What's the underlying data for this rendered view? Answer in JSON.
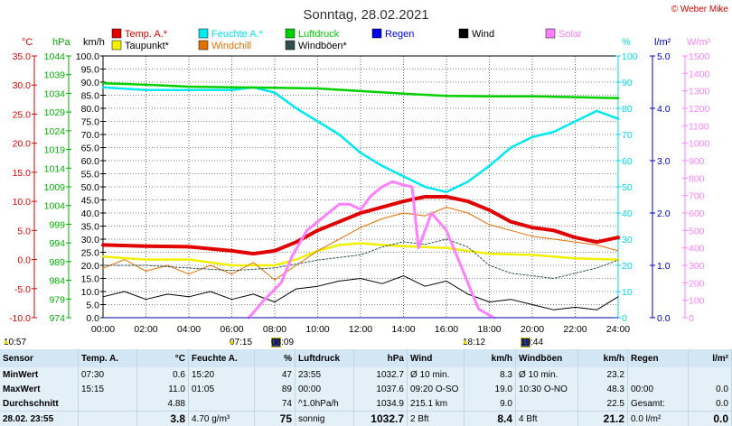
{
  "chart_data": {
    "type": "line",
    "title": "Sonntag, 28.02.2021",
    "credit": "© Weber Mike",
    "x_ticks": [
      "00:00",
      "02:00",
      "04:00",
      "06:00",
      "08:00",
      "10:00",
      "12:00",
      "14:00",
      "16:00",
      "18:00",
      "20:00",
      "22:00",
      "24:00"
    ],
    "axes": [
      {
        "unit": "°C",
        "range": [
          -10,
          35
        ],
        "ticks": [
          "35.0",
          "30.0",
          "25.0",
          "20.0",
          "15.0",
          "10.0",
          "5.0",
          "0.0",
          "-5.0",
          "-10.0"
        ],
        "color": "#e00000"
      },
      {
        "unit": "hPa",
        "range": [
          974,
          1044
        ],
        "ticks": [
          "1044",
          "1039",
          "1034",
          "1029",
          "1024",
          "1019",
          "1014",
          "1009",
          "1004",
          "999",
          "994",
          "989",
          "984",
          "979",
          "974"
        ],
        "color": "#00b000"
      },
      {
        "unit": "km/h",
        "range": [
          0,
          100
        ],
        "ticks": [
          "100.0",
          "95.0",
          "90.0",
          "85.0",
          "80.0",
          "75.0",
          "70.0",
          "65.0",
          "60.0",
          "55.0",
          "50.0",
          "45.0",
          "40.0",
          "35.0",
          "30.0",
          "25.0",
          "20.0",
          "15.0",
          "10.0",
          "5.0",
          "0.0"
        ],
        "color": "#000000"
      },
      {
        "unit": "%",
        "range": [
          0,
          100
        ],
        "ticks": [
          "100",
          "90",
          "80",
          "70",
          "60",
          "50",
          "40",
          "30",
          "20",
          "10",
          "0"
        ],
        "color": "#00d8e8"
      },
      {
        "unit": "l/m²",
        "range": [
          0,
          5
        ],
        "ticks": [
          "5.0",
          "4.0",
          "3.0",
          "2.0",
          "1.0",
          "0.0"
        ],
        "color": "#0000c0"
      },
      {
        "unit": "W/m²",
        "range": [
          0,
          1500
        ],
        "ticks": [
          "1500",
          "1400",
          "1300",
          "1200",
          "1100",
          "1000",
          "900",
          "800",
          "700",
          "600",
          "500",
          "400",
          "300",
          "200",
          "100",
          "0"
        ],
        "color": "#ff80ff"
      }
    ],
    "legend": [
      {
        "label": "Temp. A.*",
        "color": "#e00000"
      },
      {
        "label": "Feuchte A.*",
        "color": "#00e8f0"
      },
      {
        "label": "Luftdruck",
        "color": "#00d000"
      },
      {
        "label": "Regen",
        "color": "#0000e0"
      },
      {
        "label": "Wind",
        "color": "#000000"
      },
      {
        "label": "Solar",
        "color": "#ff80ff"
      },
      {
        "label": "Taupunkt*",
        "color": "#f0f000"
      },
      {
        "label": "Windchill",
        "color": "#e07000"
      },
      {
        "label": "Windböen*",
        "color": "#305050"
      }
    ],
    "series": [
      {
        "name": "Temp. A.*",
        "axis": "°C",
        "color": "#e00000",
        "x": [
          0,
          2,
          4,
          6,
          7,
          8,
          9,
          10,
          11,
          12,
          13,
          14,
          15,
          16,
          17,
          18,
          19,
          20,
          21,
          22,
          23,
          24
        ],
        "y": [
          2.5,
          2.3,
          2.2,
          1.5,
          1.0,
          1.5,
          3.0,
          5.0,
          6.5,
          8.0,
          9.0,
          10.0,
          10.8,
          10.8,
          10.0,
          8.5,
          6.5,
          5.5,
          5.0,
          3.8,
          3.0,
          3.8
        ]
      },
      {
        "name": "Feuchte A.*",
        "axis": "%",
        "color": "#00e8f0",
        "x": [
          0,
          2,
          4,
          6,
          7,
          8,
          9,
          10,
          11,
          12,
          13,
          14,
          15,
          16,
          17,
          18,
          19,
          20,
          21,
          22,
          23,
          24
        ],
        "y": [
          88,
          87,
          87,
          87,
          88,
          86,
          80,
          75,
          70,
          63,
          58,
          54,
          50,
          48,
          52,
          58,
          65,
          69,
          71,
          75,
          79,
          76
        ]
      },
      {
        "name": "Luftdruck",
        "axis": "hPa",
        "color": "#00d000",
        "x": [
          0,
          2,
          4,
          6,
          8,
          10,
          12,
          14,
          16,
          18,
          20,
          22,
          24
        ],
        "y": [
          1036.7,
          1036.3,
          1035.8,
          1035.6,
          1035.5,
          1035.3,
          1034.6,
          1033.9,
          1033.3,
          1033.2,
          1033.2,
          1033.0,
          1032.7
        ]
      },
      {
        "name": "Taupunkt*",
        "axis": "°C",
        "color": "#f0f000",
        "x": [
          0,
          2,
          4,
          6,
          8,
          9,
          10,
          11,
          12,
          13,
          14,
          16,
          18,
          20,
          22,
          24
        ],
        "y": [
          0.5,
          0.0,
          0.0,
          -1.0,
          -1.0,
          0.0,
          1.5,
          2.5,
          2.8,
          2.5,
          2.3,
          2.0,
          1.0,
          0.8,
          0.2,
          0.0
        ]
      },
      {
        "name": "Windchill",
        "axis": "°C",
        "color": "#e07000",
        "x": [
          0,
          1,
          2,
          3,
          4,
          5,
          6,
          7,
          8,
          9,
          10,
          11,
          12,
          13,
          14,
          15,
          16,
          17,
          18,
          19,
          20,
          21,
          22,
          23,
          24
        ],
        "y": [
          -1.5,
          0.0,
          -2.0,
          -1.0,
          -2.5,
          -1.0,
          -2.5,
          -0.5,
          -3.5,
          -1.0,
          1.5,
          3.5,
          5.5,
          7.0,
          8.0,
          7.5,
          9.0,
          8.0,
          6.0,
          5.0,
          4.0,
          3.5,
          3.0,
          2.5,
          1.5
        ]
      },
      {
        "name": "Windböen*",
        "axis": "km/h",
        "color": "#305050",
        "x": [
          0,
          2,
          4,
          6,
          8,
          10,
          12,
          13,
          14,
          15,
          16,
          17,
          18,
          19,
          20,
          21,
          22,
          23,
          24
        ],
        "y": [
          20,
          20,
          19,
          18,
          19,
          22,
          24,
          27,
          29,
          28,
          30,
          27,
          20,
          17,
          16,
          15,
          17,
          19,
          22
        ]
      },
      {
        "name": "Wind",
        "axis": "km/h",
        "color": "#000000",
        "x": [
          0,
          1,
          2,
          3,
          4,
          5,
          6,
          7,
          8,
          9,
          10,
          11,
          12,
          13,
          14,
          15,
          16,
          17,
          18,
          19,
          20,
          21,
          22,
          23,
          24
        ],
        "y": [
          8,
          10,
          7,
          9,
          8,
          10,
          7,
          9,
          6,
          11,
          12,
          14,
          15,
          13,
          16,
          12,
          14,
          9,
          6,
          7,
          5,
          3,
          4,
          3,
          8
        ]
      },
      {
        "name": "Solar",
        "axis": "W/m²",
        "color": "#ff80ff",
        "x": [
          6.8,
          7.5,
          8.3,
          8.8,
          9.5,
          10,
          10.5,
          11,
          11.5,
          12,
          12.5,
          13,
          13.5,
          14,
          14.4,
          14.7,
          15,
          15.3,
          16,
          16.5,
          17,
          17.5,
          18.2
        ],
        "y": [
          0,
          100,
          200,
          350,
          500,
          550,
          600,
          650,
          650,
          620,
          700,
          750,
          780,
          760,
          750,
          400,
          500,
          600,
          500,
          350,
          200,
          50,
          0
        ]
      },
      {
        "name": "Regen",
        "axis": "l/m²",
        "color": "#0000e0",
        "x": [
          0,
          24
        ],
        "y": [
          0,
          0
        ]
      }
    ],
    "grid": true
  },
  "sun": {
    "sunrise": "07:15",
    "sunset": "18:12",
    "moonrise": "08:09",
    "moonset": "19:44",
    "left_time": "10:57"
  },
  "table": {
    "headers": {
      "sensor": "Sensor",
      "temp": "Temp. A.",
      "temp_unit": "°C",
      "hum": "Feuchte A.",
      "hum_unit": "%",
      "press": "Luftdruck",
      "press_unit": "hPa",
      "wind": "Wind",
      "wind_unit": "km/h",
      "gust": "Windböen",
      "gust_unit": "km/h",
      "rain": "Regen",
      "rain_unit": "l/m²"
    },
    "rows": [
      {
        "label": "MinWert",
        "t_time": "07:30",
        "t_val": "0.6",
        "h_time": "15:20",
        "h_val": "47",
        "p_time": "23:55",
        "p_val": "1032.7",
        "w_text": "Ø 10 min.",
        "w_val": "8.3",
        "g_text": "Ø 10 min.",
        "g_val": "23.2",
        "r_text": "",
        "r_val": ""
      },
      {
        "label": "MaxWert",
        "t_time": "15:15",
        "t_val": "11.0",
        "h_time": "01:05",
        "h_val": "89",
        "p_time": "00:00",
        "p_val": "1037.6",
        "w_text": "09:20",
        "w_dir": "O-SO",
        "w_val": "19.0",
        "g_text": "10:30",
        "g_dir": "O-NO",
        "g_val": "48.3",
        "r_text": "00:00",
        "r_val": "0.0"
      },
      {
        "label": "Durchschnitt",
        "t_time": "",
        "t_val": "4.88",
        "h_time": "",
        "h_val": "74",
        "p_time": "^1.0hPa/h",
        "p_val": "1034.9",
        "w_text": "215.1 km",
        "w_val": "9.0",
        "g_text": "",
        "g_val": "22.5",
        "r_text": "Gesamt:",
        "r_val": "0.0"
      },
      {
        "label": "28.02. 23:55",
        "t_time": "",
        "t_val": "3.8",
        "h_time": "4.70 g/m³",
        "h_val": "75",
        "p_time": "sonnig",
        "p_val": "1032.7",
        "w_text": "2 Bft",
        "w_val": "8.4",
        "g_text": "4 Bft",
        "g_val": "21.2",
        "r_text": "0.0 l/m²",
        "r_val": "0.0"
      }
    ]
  }
}
